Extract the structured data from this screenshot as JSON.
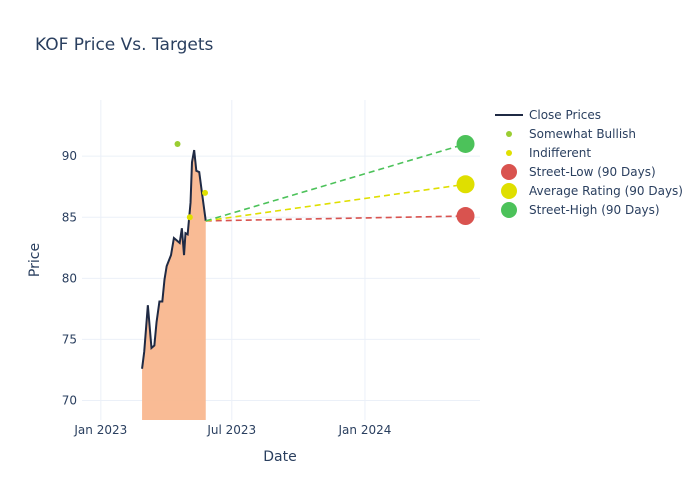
{
  "chart_data": {
    "type": "line",
    "title": "KOF Price Vs. Targets",
    "xlabel": "Date",
    "ylabel": "Price",
    "xlim": [
      "2022-12-06",
      "2024-06-08"
    ],
    "ylim": [
      68.4,
      94.6
    ],
    "xticks": [
      {
        "date": "2023-01-01",
        "label": "Jan 2023"
      },
      {
        "date": "2023-07-01",
        "label": "Jul 2023"
      },
      {
        "date": "2024-01-01",
        "label": "Jan 2024"
      }
    ],
    "yticks": [
      70,
      75,
      80,
      85,
      90
    ],
    "grid": true,
    "legend_position": "right",
    "close_prices": {
      "name": "Close Prices",
      "color": "#1f2a44",
      "fill": "#f9b78f",
      "x": [
        "2023-02-27",
        "2023-03-02",
        "2023-03-07",
        "2023-03-12",
        "2023-03-16",
        "2023-03-19",
        "2023-03-23",
        "2023-03-27",
        "2023-03-30",
        "2023-04-02",
        "2023-04-08",
        "2023-04-12",
        "2023-04-20",
        "2023-04-23",
        "2023-04-26",
        "2023-04-28",
        "2023-05-01",
        "2023-05-05",
        "2023-05-07",
        "2023-05-10",
        "2023-05-13",
        "2023-05-17",
        "2023-05-21",
        "2023-05-26"
      ],
      "y": [
        72.6,
        74.0,
        77.8,
        74.3,
        74.5,
        76.4,
        78.1,
        78.1,
        79.9,
        81.0,
        81.9,
        83.3,
        82.9,
        84.1,
        81.9,
        83.7,
        83.6,
        86.2,
        89.5,
        90.5,
        88.8,
        88.7,
        86.9,
        84.7
      ]
    },
    "ratings": [
      {
        "name": "Somewhat Bullish",
        "color": "#9acd32",
        "points": [
          {
            "x": "2023-04-17",
            "y": 91.0
          }
        ]
      },
      {
        "name": "Indifferent",
        "color": "#e0e000",
        "points": [
          {
            "x": "2023-05-04",
            "y": 85.0
          },
          {
            "x": "2023-05-25",
            "y": 87.0
          }
        ]
      }
    ],
    "targets": {
      "start": {
        "x": "2023-05-26",
        "y": 84.7
      },
      "end_date": "2024-05-19",
      "series": [
        {
          "name": "Street-Low (90 Days)",
          "color": "#d9534f",
          "value": 85.1
        },
        {
          "name": "Average Rating (90 Days)",
          "color": "#dfdf00",
          "value": 87.7
        },
        {
          "name": "Street-High (90 Days)",
          "color": "#4cc25a",
          "value": 91.0
        }
      ]
    }
  }
}
